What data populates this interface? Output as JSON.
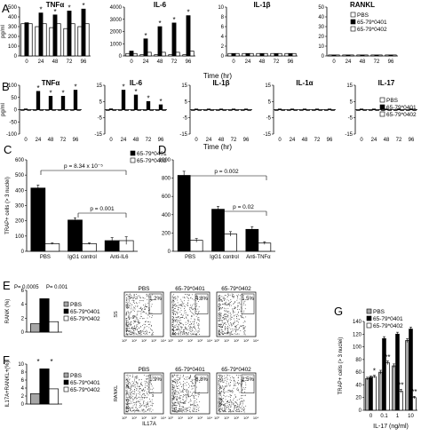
{
  "colors": {
    "pbs": "#ffffff",
    "c0401": "#000000",
    "c0402": "#ffffff",
    "gray": "#a6a6a6",
    "stroke": "#000000"
  },
  "panels": {
    "A": {
      "letter": "A",
      "xlabel": "Time (hr)"
    },
    "B": {
      "letter": "B",
      "xlabel": "Time (hr)"
    },
    "C": {
      "letter": "C"
    },
    "D": {
      "letter": "D"
    },
    "E": {
      "letter": "E"
    },
    "F": {
      "letter": "F"
    },
    "G": {
      "letter": "G"
    }
  },
  "chart_data": [
    {
      "id": "A-TNFa",
      "type": "bar",
      "title": "TNFα",
      "ylabel": "pg/ml",
      "ylim": [
        0,
        500
      ],
      "yticks": [
        0,
        100,
        200,
        300,
        400,
        500
      ],
      "categories": [
        "0",
        "24",
        "48",
        "72",
        "96"
      ],
      "series": [
        {
          "name": "PBS",
          "values": [
            330,
            300,
            290,
            280,
            300
          ]
        },
        {
          "name": "65-79*0401",
          "values": [
            340,
            440,
            420,
            460,
            480
          ]
        },
        {
          "name": "65-79*0402",
          "values": [
            330,
            330,
            330,
            330,
            330
          ]
        }
      ],
      "annotations": [
        "*",
        "*",
        "*",
        "*"
      ]
    },
    {
      "id": "A-IL6",
      "type": "bar",
      "title": "IL-6",
      "ylim": [
        0,
        4000
      ],
      "yticks": [
        0,
        1000,
        2000,
        3000,
        4000
      ],
      "categories": [
        "0",
        "24",
        "48",
        "72",
        "96"
      ],
      "series": [
        {
          "name": "PBS",
          "values": [
            200,
            100,
            100,
            100,
            100
          ]
        },
        {
          "name": "65-79*0401",
          "values": [
            400,
            1400,
            2400,
            2700,
            3300
          ]
        },
        {
          "name": "65-79*0402",
          "values": [
            200,
            300,
            300,
            300,
            400
          ]
        }
      ],
      "annotations": [
        "*",
        "*",
        "*",
        "*"
      ]
    },
    {
      "id": "A-IL1b",
      "type": "bar",
      "title": "IL-1β",
      "ylim": [
        0,
        10
      ],
      "yticks": [
        0,
        2,
        4,
        6,
        8,
        10
      ],
      "categories": [
        "0",
        "24",
        "48",
        "72",
        "96"
      ],
      "series": [
        {
          "name": "PBS",
          "values": [
            0.5,
            0.5,
            0.5,
            0.5,
            0.5
          ]
        },
        {
          "name": "65-79*0401",
          "values": [
            0.5,
            0.5,
            0.5,
            0.5,
            0.5
          ]
        },
        {
          "name": "65-79*0402",
          "values": [
            0.5,
            0.5,
            0.5,
            0.5,
            0.5
          ]
        }
      ]
    },
    {
      "id": "A-RANKL",
      "type": "bar",
      "title": "RANKL",
      "ylim": [
        0,
        50
      ],
      "yticks": [
        0,
        10,
        20,
        30,
        40,
        50
      ],
      "categories": [
        "0",
        "24",
        "48",
        "72",
        "96"
      ],
      "series": [
        {
          "name": "PBS",
          "values": [
            1,
            1,
            1,
            1,
            1
          ]
        },
        {
          "name": "65-79*0401",
          "values": [
            1,
            1,
            1,
            1,
            1
          ]
        },
        {
          "name": "65-79*0402",
          "values": [
            1,
            1,
            1,
            1,
            1
          ]
        }
      ],
      "legend": [
        "PBS",
        "65-79*0401",
        "65-79*0402"
      ]
    },
    {
      "id": "B-TNFa",
      "type": "bar",
      "title": "TNFα",
      "ylabel": "pg/ml",
      "ylim": [
        -100,
        100
      ],
      "yticks": [
        -100,
        -50,
        0,
        50,
        100
      ],
      "categories": [
        "0",
        "24",
        "48",
        "72",
        "96"
      ],
      "series": [
        {
          "name": "PBS",
          "values": [
            -3,
            -3,
            -3,
            -3,
            -3
          ]
        },
        {
          "name": "65-79*0401",
          "values": [
            3,
            75,
            55,
            55,
            80
          ]
        },
        {
          "name": "65-79*0402",
          "values": [
            -3,
            -3,
            -3,
            -3,
            -3
          ]
        }
      ],
      "annotations": [
        "*",
        "*",
        "*",
        "*"
      ]
    },
    {
      "id": "B-IL6",
      "type": "bar",
      "title": "IL-6",
      "ylim": [
        -15,
        15
      ],
      "yticks": [
        -15,
        -5,
        5,
        15
      ],
      "categories": [
        "0",
        "24",
        "48",
        "72",
        "96"
      ],
      "series": [
        {
          "name": "PBS",
          "values": [
            -0.5,
            -0.5,
            -0.5,
            -0.5,
            -0.5
          ]
        },
        {
          "name": "65-79*0401",
          "values": [
            0.5,
            12,
            9,
            5,
            3
          ]
        },
        {
          "name": "65-79*0402",
          "values": [
            -0.5,
            -0.5,
            -0.5,
            -0.5,
            -0.5
          ]
        }
      ],
      "annotations": [
        "*",
        "*",
        "*",
        "*"
      ]
    },
    {
      "id": "B-IL1b",
      "type": "bar",
      "title": "IL-1β",
      "ylim": [
        -15,
        15
      ],
      "yticks": [
        -15,
        -5,
        5,
        15
      ],
      "categories": [
        "0",
        "24",
        "48",
        "72",
        "96"
      ],
      "series": [
        {
          "name": "PBS",
          "values": [
            -0.5,
            -0.5,
            -0.5,
            -0.5,
            -0.5
          ]
        },
        {
          "name": "65-79*0401",
          "values": [
            0.4,
            0.4,
            0.4,
            0.4,
            0.4
          ]
        },
        {
          "name": "65-79*0402",
          "values": [
            -0.5,
            -0.5,
            -0.5,
            -0.5,
            -0.5
          ]
        }
      ]
    },
    {
      "id": "B-IL1a",
      "type": "bar",
      "title": "IL-1α",
      "ylim": [
        -15,
        15
      ],
      "yticks": [
        -15,
        -5,
        5,
        15
      ],
      "categories": [
        "0",
        "24",
        "48",
        "72",
        "96"
      ],
      "series": [
        {
          "name": "PBS",
          "values": [
            -0.5,
            -0.5,
            -0.5,
            -0.5,
            -0.5
          ]
        },
        {
          "name": "65-79*0401",
          "values": [
            0.4,
            0.4,
            0.4,
            0.4,
            0.4
          ]
        },
        {
          "name": "65-79*0402",
          "values": [
            -0.5,
            -0.5,
            -0.5,
            -0.5,
            -0.5
          ]
        }
      ]
    },
    {
      "id": "B-IL17",
      "type": "bar",
      "title": "IL-17",
      "ylim": [
        -15,
        15
      ],
      "yticks": [
        -15,
        -5,
        5,
        15
      ],
      "categories": [
        "0",
        "24",
        "48",
        "72",
        "96"
      ],
      "series": [
        {
          "name": "PBS",
          "values": [
            -0.5,
            -0.5,
            -0.5,
            -0.5,
            -0.5
          ]
        },
        {
          "name": "65-79*0401",
          "values": [
            0.4,
            0.4,
            0.4,
            0.4,
            0.4
          ]
        },
        {
          "name": "65-79*0402",
          "values": [
            -0.5,
            -0.5,
            -0.5,
            -0.5,
            -0.5
          ]
        }
      ],
      "legend": [
        "PBS",
        "65-79*0401",
        "65-79*0402"
      ]
    },
    {
      "id": "C",
      "type": "bar",
      "ylabel": "TRAP+ cells (> 3 nuclei)",
      "ylim": [
        0,
        600
      ],
      "yticks": [
        0,
        100,
        200,
        300,
        400,
        500,
        600
      ],
      "categories": [
        "PBS",
        "IgG1 control",
        "Anti-IL6"
      ],
      "series": [
        {
          "name": "65-79*0401",
          "values": [
            415,
            205,
            70
          ],
          "errors": [
            20,
            15,
            20
          ]
        },
        {
          "name": "65-79*0402",
          "values": [
            50,
            50,
            70
          ],
          "errors": [
            5,
            5,
            25
          ]
        }
      ],
      "legend": [
        "65-79*0401",
        "65-79*0402"
      ],
      "annotations": [
        "p = 8.34 x 10⁻⁵",
        "p = 0.001"
      ]
    },
    {
      "id": "D",
      "type": "bar",
      "ylim": [
        0,
        1000
      ],
      "yticks": [
        0,
        200,
        400,
        600,
        800,
        1000
      ],
      "categories": [
        "PBS",
        "IgG1 control",
        "Anti-TNFα"
      ],
      "series": [
        {
          "name": "65-79*0401",
          "values": [
            830,
            460,
            240
          ],
          "errors": [
            45,
            30,
            30
          ]
        },
        {
          "name": "65-79*0402",
          "values": [
            120,
            190,
            90
          ],
          "errors": [
            20,
            25,
            15
          ]
        }
      ],
      "annotations": [
        "p = 0.002",
        "p = 0.02"
      ]
    },
    {
      "id": "E",
      "type": "bar",
      "ylabel": "RANK (%)",
      "ylim": [
        0,
        6
      ],
      "yticks": [
        0,
        2,
        4,
        6
      ],
      "categories": [
        ""
      ],
      "series": [
        {
          "name": "PBS",
          "values": [
            1.2
          ]
        },
        {
          "name": "65-79*0401",
          "values": [
            4.8
          ]
        },
        {
          "name": "65-79*0402",
          "values": [
            1.5
          ]
        }
      ],
      "legend": [
        "PBS",
        "65-79*0401",
        "65-79*0402"
      ],
      "annotations": [
        "P= 0.0005",
        "P= 0.001"
      ]
    },
    {
      "id": "F",
      "type": "bar",
      "ylabel": "IL17A+RANKL+(%)",
      "ylim": [
        0,
        10
      ],
      "yticks": [
        0,
        2,
        4,
        6,
        8,
        10
      ],
      "categories": [
        ""
      ],
      "series": [
        {
          "name": "PBS",
          "values": [
            2.6
          ]
        },
        {
          "name": "65-79*0401",
          "values": [
            8.8
          ]
        },
        {
          "name": "65-79*0402",
          "values": [
            3.8
          ]
        }
      ],
      "legend": [
        "PBS",
        "65-79*0401",
        "65-79*0402"
      ],
      "annotations": [
        "*",
        "*"
      ]
    },
    {
      "id": "G",
      "type": "bar",
      "ylabel": "TRAP+ cells (> 3 nuclei)",
      "xlabel": "IL-17 (ng/ml)",
      "ylim": [
        0,
        140
      ],
      "yticks": [
        0,
        20,
        40,
        60,
        80,
        100,
        120,
        140
      ],
      "categories": [
        "0",
        "0.1",
        "1",
        "10"
      ],
      "series": [
        {
          "name": "PBS",
          "values": [
            50,
            60,
            70,
            110
          ],
          "errors": [
            2,
            3,
            3,
            3
          ]
        },
        {
          "name": "65-79*0401",
          "values": [
            52,
            113,
            120,
            128
          ],
          "errors": [
            2,
            3,
            3,
            3
          ]
        },
        {
          "name": "65-79*0402",
          "values": [
            53,
            75,
            30,
            20
          ],
          "errors": [
            2,
            3,
            3,
            2
          ]
        }
      ],
      "legend": [
        "PBS",
        "65-79*0401",
        "65-79*0402"
      ],
      "annotations": [
        "*",
        "**",
        "*",
        "**",
        "**"
      ]
    },
    {
      "id": "E-flow",
      "type": "scatter",
      "panels": [
        {
          "label": "PBS",
          "percent": "1.2%"
        },
        {
          "label": "65-79*0401",
          "percent": "4.8%"
        },
        {
          "label": "65-79*0402",
          "percent": "1.5%"
        }
      ],
      "ylabel": "SS",
      "xticks": [
        "10⁰",
        "10¹",
        "10²",
        "10³",
        "10⁴"
      ]
    },
    {
      "id": "F-flow",
      "type": "scatter",
      "panels": [
        {
          "label": "PBS",
          "percent": "1.9%"
        },
        {
          "label": "65-79*0401",
          "percent": "8.8%"
        },
        {
          "label": "65-79*0402",
          "percent": "2.5%"
        }
      ],
      "ylabel": "RANKL",
      "xlabel": "IL17A",
      "xticks": [
        "10⁰",
        "10¹",
        "10²",
        "10³",
        "10⁴"
      ]
    }
  ]
}
